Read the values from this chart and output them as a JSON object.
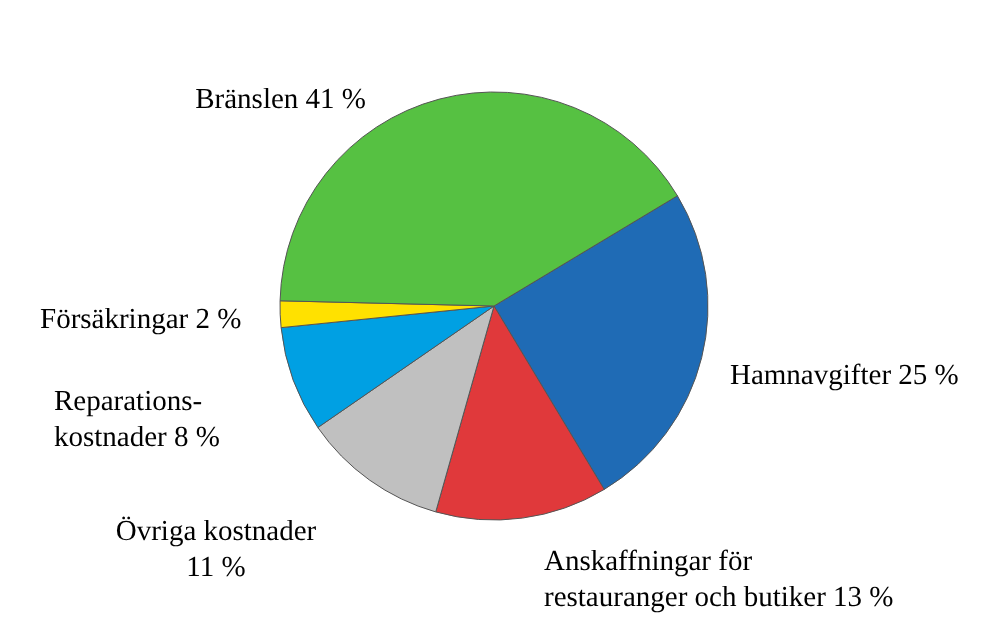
{
  "chart_data": {
    "type": "pie",
    "categories": [
      "Hamnavgifter",
      "Anskaffningar för restauranger och butiker",
      "Övriga kostnader",
      "Reparations-kostnader",
      "Försäkringar",
      "Bränslen"
    ],
    "values": [
      25,
      13,
      11,
      8,
      2,
      41
    ],
    "colors": [
      "#1f6bb5",
      "#e0393b",
      "#c0c0c0",
      "#00a0e3",
      "#ffe100",
      "#56c142"
    ],
    "value_labels": [
      "25 %",
      "13 %",
      "11 %",
      "8 %",
      "2 %",
      "41 %"
    ]
  }
}
